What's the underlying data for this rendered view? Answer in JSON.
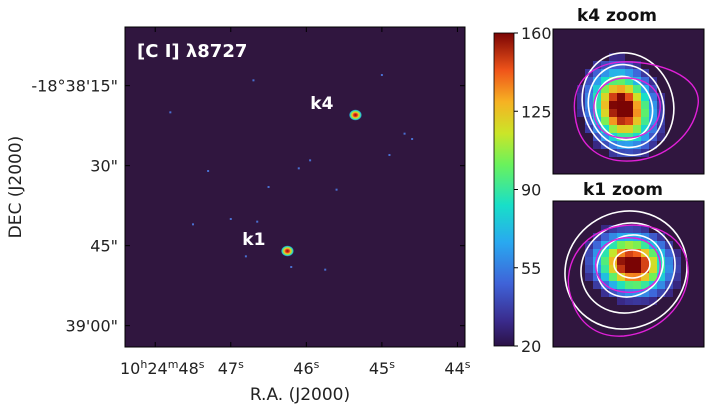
{
  "chart_data": [
    {
      "type": "heatmap",
      "title": "[C I] λ8727",
      "xlabel": "R.A. (J2000)",
      "ylabel": "DEC (J2000)",
      "x_tick_labels": [
        {
          "h": "10",
          "m": "24",
          "s": "48",
          "value": 48
        },
        {
          "s": "47",
          "value": 47
        },
        {
          "s": "46",
          "value": 46
        },
        {
          "s": "45",
          "value": 45
        },
        {
          "s": "44",
          "value": 44
        }
      ],
      "y_tick_labels": [
        {
          "text": "-18°38'15\"",
          "value": 15
        },
        {
          "text": "30\"",
          "value": 30
        },
        {
          "text": "45\"",
          "value": 45
        },
        {
          "text": "39'00\"",
          "value": 60
        }
      ],
      "xlim_sec": [
        48.4,
        43.9
      ],
      "ylim_arcsec": [
        4,
        64
      ],
      "sources": [
        {
          "label": "k4",
          "ra_s": 45.35,
          "dec_arcsec": 20.5
        },
        {
          "label": "k1",
          "ra_s": 46.25,
          "dec_arcsec": 46.0
        }
      ],
      "noise_points": [
        {
          "ra_s": 46.7,
          "dec_arcsec": 14.0
        },
        {
          "ra_s": 45.0,
          "dec_arcsec": 13.0
        },
        {
          "ra_s": 44.7,
          "dec_arcsec": 24.0
        },
        {
          "ra_s": 44.6,
          "dec_arcsec": 25.0
        },
        {
          "ra_s": 45.95,
          "dec_arcsec": 29.0
        },
        {
          "ra_s": 46.1,
          "dec_arcsec": 30.5
        },
        {
          "ra_s": 47.3,
          "dec_arcsec": 31.0
        },
        {
          "ra_s": 46.5,
          "dec_arcsec": 34.0
        },
        {
          "ra_s": 45.6,
          "dec_arcsec": 34.5
        },
        {
          "ra_s": 44.9,
          "dec_arcsec": 28.0
        },
        {
          "ra_s": 47.0,
          "dec_arcsec": 40.0
        },
        {
          "ra_s": 46.65,
          "dec_arcsec": 40.5
        },
        {
          "ra_s": 47.5,
          "dec_arcsec": 41.0
        },
        {
          "ra_s": 46.8,
          "dec_arcsec": 47.0
        },
        {
          "ra_s": 45.75,
          "dec_arcsec": 49.5
        },
        {
          "ra_s": 46.2,
          "dec_arcsec": 49.0
        },
        {
          "ra_s": 47.8,
          "dec_arcsec": 20.0
        }
      ],
      "colorbar": {
        "range": [
          20,
          160
        ],
        "ticks": [
          20,
          55,
          90,
          125,
          160
        ],
        "colormap": "jet"
      },
      "colors": {
        "background": "#30163f",
        "text_on_map": "#ffffff"
      }
    },
    {
      "type": "heatmap",
      "title": "k4 zoom",
      "contour_colors": [
        "#ffffff",
        "#e020d8"
      ],
      "peak_value_range": [
        20,
        160
      ]
    },
    {
      "type": "heatmap",
      "title": "k1 zoom",
      "contour_colors": [
        "#ffffff",
        "#e020d8"
      ],
      "peak_value_range": [
        20,
        160
      ]
    }
  ]
}
